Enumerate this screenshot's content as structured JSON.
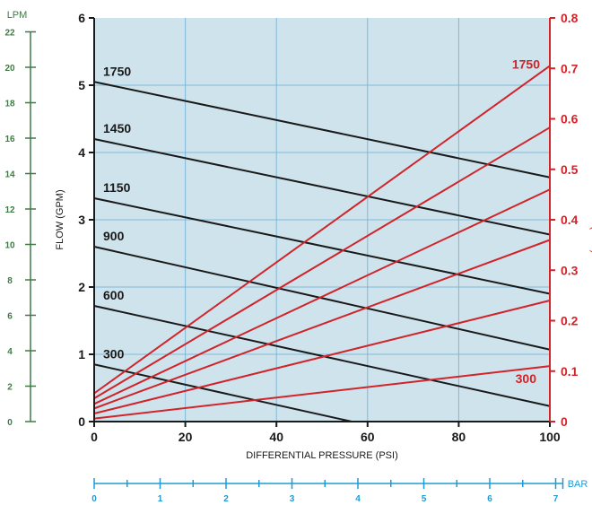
{
  "chart_data": {
    "type": "line",
    "xlabel": "DIFFERENTIAL PRESSURE  (PSI)",
    "ylabel": "FLOW  (GPM)",
    "ylabel_right": "POWER  (BHP)",
    "secondary_x_label": "BAR",
    "secondary_y_label": "LPM",
    "xlim": [
      0,
      100
    ],
    "ylim": [
      0,
      6
    ],
    "ylim_right": [
      0,
      0.8
    ],
    "x_ticks": [
      "0",
      "20",
      "40",
      "60",
      "80",
      "100"
    ],
    "y_ticks": [
      "0",
      "1",
      "2",
      "3",
      "4",
      "5",
      "6"
    ],
    "y_right_ticks": [
      "0",
      "0.1",
      "0.2",
      "0.3",
      "0.4",
      "0.5",
      "0.6",
      "0.7",
      "0.8"
    ],
    "bar_ticks": [
      "0",
      "1",
      "2",
      "3",
      "4",
      "5",
      "6",
      "7"
    ],
    "lpm_ticks": [
      "0",
      "2",
      "4",
      "6",
      "8",
      "10",
      "12",
      "14",
      "16",
      "18",
      "20",
      "22"
    ],
    "grid": true,
    "flow_series": [
      {
        "name": "1750",
        "x": [
          0,
          100
        ],
        "y": [
          5.05,
          3.63
        ]
      },
      {
        "name": "1450",
        "x": [
          0,
          100
        ],
        "y": [
          4.2,
          2.78
        ]
      },
      {
        "name": "1150",
        "x": [
          0,
          100
        ],
        "y": [
          3.32,
          1.9
        ]
      },
      {
        "name": "900",
        "x": [
          0,
          100
        ],
        "y": [
          2.6,
          1.07
        ]
      },
      {
        "name": "600",
        "x": [
          0,
          100
        ],
        "y": [
          1.72,
          0.23
        ]
      },
      {
        "name": "300",
        "x": [
          0,
          56.5
        ],
        "y": [
          0.85,
          0
        ]
      }
    ],
    "power_series": [
      {
        "name": "1750",
        "x": [
          0,
          100
        ],
        "y": [
          0.056,
          0.705
        ]
      },
      {
        "name": "",
        "x": [
          0,
          100
        ],
        "y": [
          0.046,
          0.583
        ]
      },
      {
        "name": "",
        "x": [
          0,
          100
        ],
        "y": [
          0.035,
          0.46
        ]
      },
      {
        "name": "",
        "x": [
          0,
          100
        ],
        "y": [
          0.026,
          0.36
        ]
      },
      {
        "name": "",
        "x": [
          0,
          100
        ],
        "y": [
          0.016,
          0.24
        ]
      },
      {
        "name": "300",
        "x": [
          0,
          100
        ],
        "y": [
          0.006,
          0.11
        ]
      }
    ],
    "colors": {
      "plot_background": "#cfe3ec",
      "grid": "#7fb8d8",
      "axis": "#1a1a1a",
      "flow_line": "#1a1a1a",
      "power_line": "#d0242a",
      "right_axis": "#d0242a",
      "lpm_axis": "#3f7a45",
      "bar_axis": "#1e9bd7"
    }
  }
}
